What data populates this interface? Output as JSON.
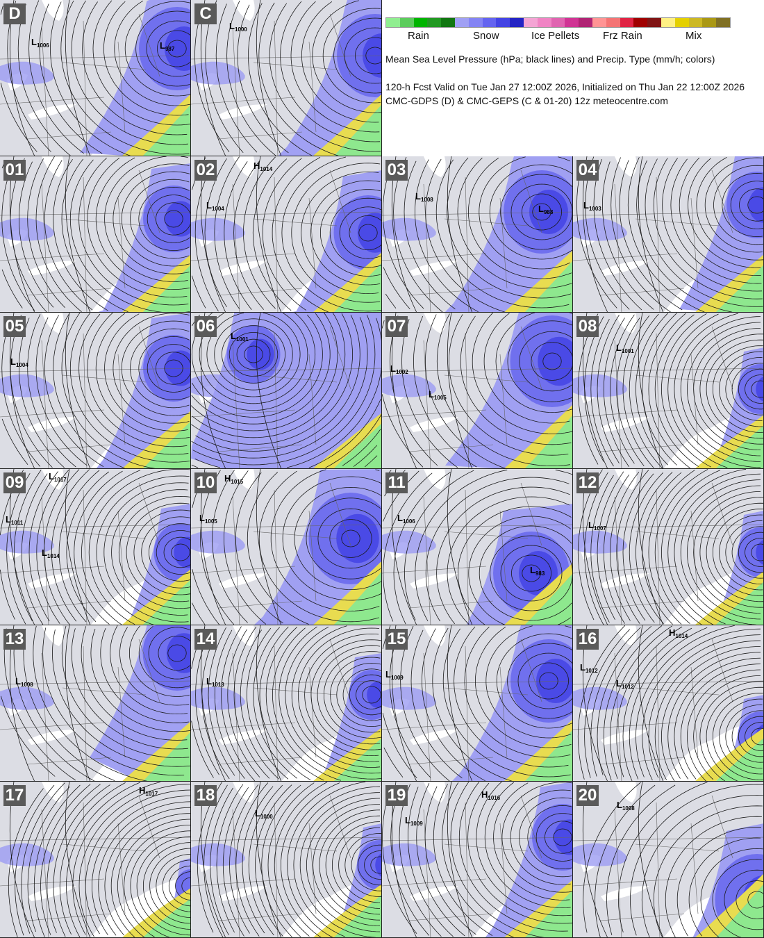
{
  "legend": {
    "swatches": [
      "#90ee90",
      "#5ccc5c",
      "#00b400",
      "#229922",
      "#117711",
      "#a0a0f4",
      "#8484f4",
      "#6464f0",
      "#4444e4",
      "#2424c4",
      "#f4a4d4",
      "#f084c4",
      "#e064b0",
      "#d03494",
      "#b02474",
      "#ff9494",
      "#f47474",
      "#e02444",
      "#a00000",
      "#801414",
      "#fff084",
      "#e4d000",
      "#ccb824",
      "#aa9814",
      "#807024"
    ],
    "categories": [
      "Rain",
      "Snow",
      "Ice Pellets",
      "Frz Rain",
      "Mix"
    ]
  },
  "description": "Mean Sea Level Pressure (hPa; black lines) and Precip. Type (mm/h; colors)",
  "valid_line": "120-h Fcst Valid on Tue Jan 27 12:00Z 2026, Initialized on Thu Jan 22 12:00Z 2026",
  "source_line": "CMC-GDPS (D) & CMC-GEPS (C & 01-20) 12z meteocentre.com",
  "panels": [
    {
      "label": "D",
      "centers": [
        {
          "type": "L",
          "value": "1006"
        },
        {
          "type": "L",
          "value": "987"
        }
      ]
    },
    {
      "label": "C",
      "centers": [
        {
          "type": "L",
          "value": "1000"
        }
      ]
    },
    {
      "label": "01",
      "centers": []
    },
    {
      "label": "02",
      "centers": [
        {
          "type": "H",
          "value": "1014"
        },
        {
          "type": "L",
          "value": "1004"
        }
      ]
    },
    {
      "label": "03",
      "centers": [
        {
          "type": "L",
          "value": "1008"
        },
        {
          "type": "L",
          "value": "988"
        }
      ]
    },
    {
      "label": "04",
      "centers": [
        {
          "type": "L",
          "value": "1003"
        }
      ]
    },
    {
      "label": "05",
      "centers": [
        {
          "type": "L",
          "value": "1004"
        }
      ]
    },
    {
      "label": "06",
      "centers": [
        {
          "type": "L",
          "value": "1001"
        }
      ]
    },
    {
      "label": "07",
      "centers": [
        {
          "type": "L",
          "value": "1002"
        },
        {
          "type": "L",
          "value": "1005"
        }
      ]
    },
    {
      "label": "08",
      "centers": [
        {
          "type": "L",
          "value": "1001"
        }
      ]
    },
    {
      "label": "09",
      "centers": [
        {
          "type": "L",
          "value": "1017"
        },
        {
          "type": "L",
          "value": "1011"
        },
        {
          "type": "L",
          "value": "1014"
        }
      ]
    },
    {
      "label": "10",
      "centers": [
        {
          "type": "H",
          "value": "1015"
        },
        {
          "type": "L",
          "value": "1005"
        }
      ]
    },
    {
      "label": "11",
      "centers": [
        {
          "type": "L",
          "value": "1006"
        },
        {
          "type": "L",
          "value": "983"
        }
      ]
    },
    {
      "label": "12",
      "centers": [
        {
          "type": "L",
          "value": "1007"
        }
      ]
    },
    {
      "label": "13",
      "centers": [
        {
          "type": "L",
          "value": "1008"
        }
      ]
    },
    {
      "label": "14",
      "centers": [
        {
          "type": "L",
          "value": "1013"
        }
      ]
    },
    {
      "label": "15",
      "centers": [
        {
          "type": "L",
          "value": "1009"
        }
      ]
    },
    {
      "label": "16",
      "centers": [
        {
          "type": "H",
          "value": "1014"
        },
        {
          "type": "L",
          "value": "1012"
        },
        {
          "type": "L",
          "value": "1012"
        }
      ]
    },
    {
      "label": "17",
      "centers": [
        {
          "type": "H",
          "value": "1017"
        }
      ]
    },
    {
      "label": "18",
      "centers": [
        {
          "type": "L",
          "value": "1000"
        }
      ]
    },
    {
      "label": "19",
      "centers": [
        {
          "type": "H",
          "value": "1016"
        },
        {
          "type": "L",
          "value": "1009"
        }
      ]
    },
    {
      "label": "20",
      "centers": [
        {
          "type": "L",
          "value": "1008"
        }
      ]
    }
  ]
}
